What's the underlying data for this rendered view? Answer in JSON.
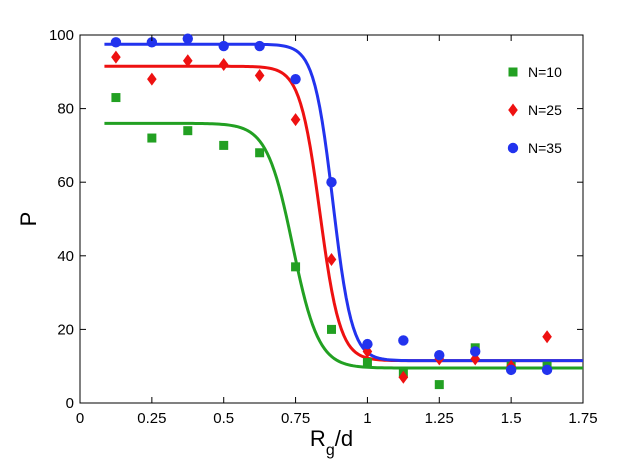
{
  "chart_data": {
    "type": "scatter",
    "title": "",
    "xlabel": "R",
    "xlabel_sub": "g",
    "xlabel_suffix": "/d",
    "ylabel": "P",
    "xlim": [
      0,
      1.75
    ],
    "ylim": [
      0,
      100
    ],
    "xticks": [
      "0",
      "0.25",
      "0.5",
      "0.75",
      "1",
      "1.25",
      "1.5",
      "1.75"
    ],
    "yticks": [
      "0",
      "20",
      "40",
      "60",
      "80",
      "100"
    ],
    "legend_position": "top-right",
    "series": [
      {
        "name": "N=10",
        "color": "#22a022",
        "marker": "square",
        "x": [
          0.125,
          0.25,
          0.375,
          0.5,
          0.625,
          0.75,
          0.875,
          1.0,
          1.125,
          1.25,
          1.375,
          1.5,
          1.625
        ],
        "y": [
          83,
          72,
          74,
          70,
          68,
          37,
          20,
          11,
          8,
          5,
          15,
          10,
          10
        ],
        "fit": {
          "low": 9.5,
          "high": 76,
          "mid": 0.74,
          "width": 0.045
        }
      },
      {
        "name": "N=25",
        "color": "#ee1111",
        "marker": "diamond",
        "x": [
          0.125,
          0.25,
          0.375,
          0.5,
          0.625,
          0.75,
          0.875,
          1.0,
          1.125,
          1.25,
          1.375,
          1.5,
          1.625
        ],
        "y": [
          94,
          88,
          93,
          92,
          89,
          77,
          39,
          14,
          7,
          12,
          12,
          10,
          18
        ],
        "fit": {
          "low": 11.5,
          "high": 91.5,
          "mid": 0.835,
          "width": 0.035
        }
      },
      {
        "name": "N=35",
        "color": "#2233ee",
        "marker": "circle",
        "x": [
          0.125,
          0.25,
          0.375,
          0.5,
          0.625,
          0.75,
          0.875,
          1.0,
          1.125,
          1.25,
          1.375,
          1.5,
          1.625
        ],
        "y": [
          98,
          98,
          99,
          97,
          97,
          88,
          60,
          16,
          17,
          13,
          14,
          9,
          9
        ],
        "fit": {
          "low": 11.5,
          "high": 97.5,
          "mid": 0.88,
          "width": 0.033
        }
      }
    ]
  }
}
